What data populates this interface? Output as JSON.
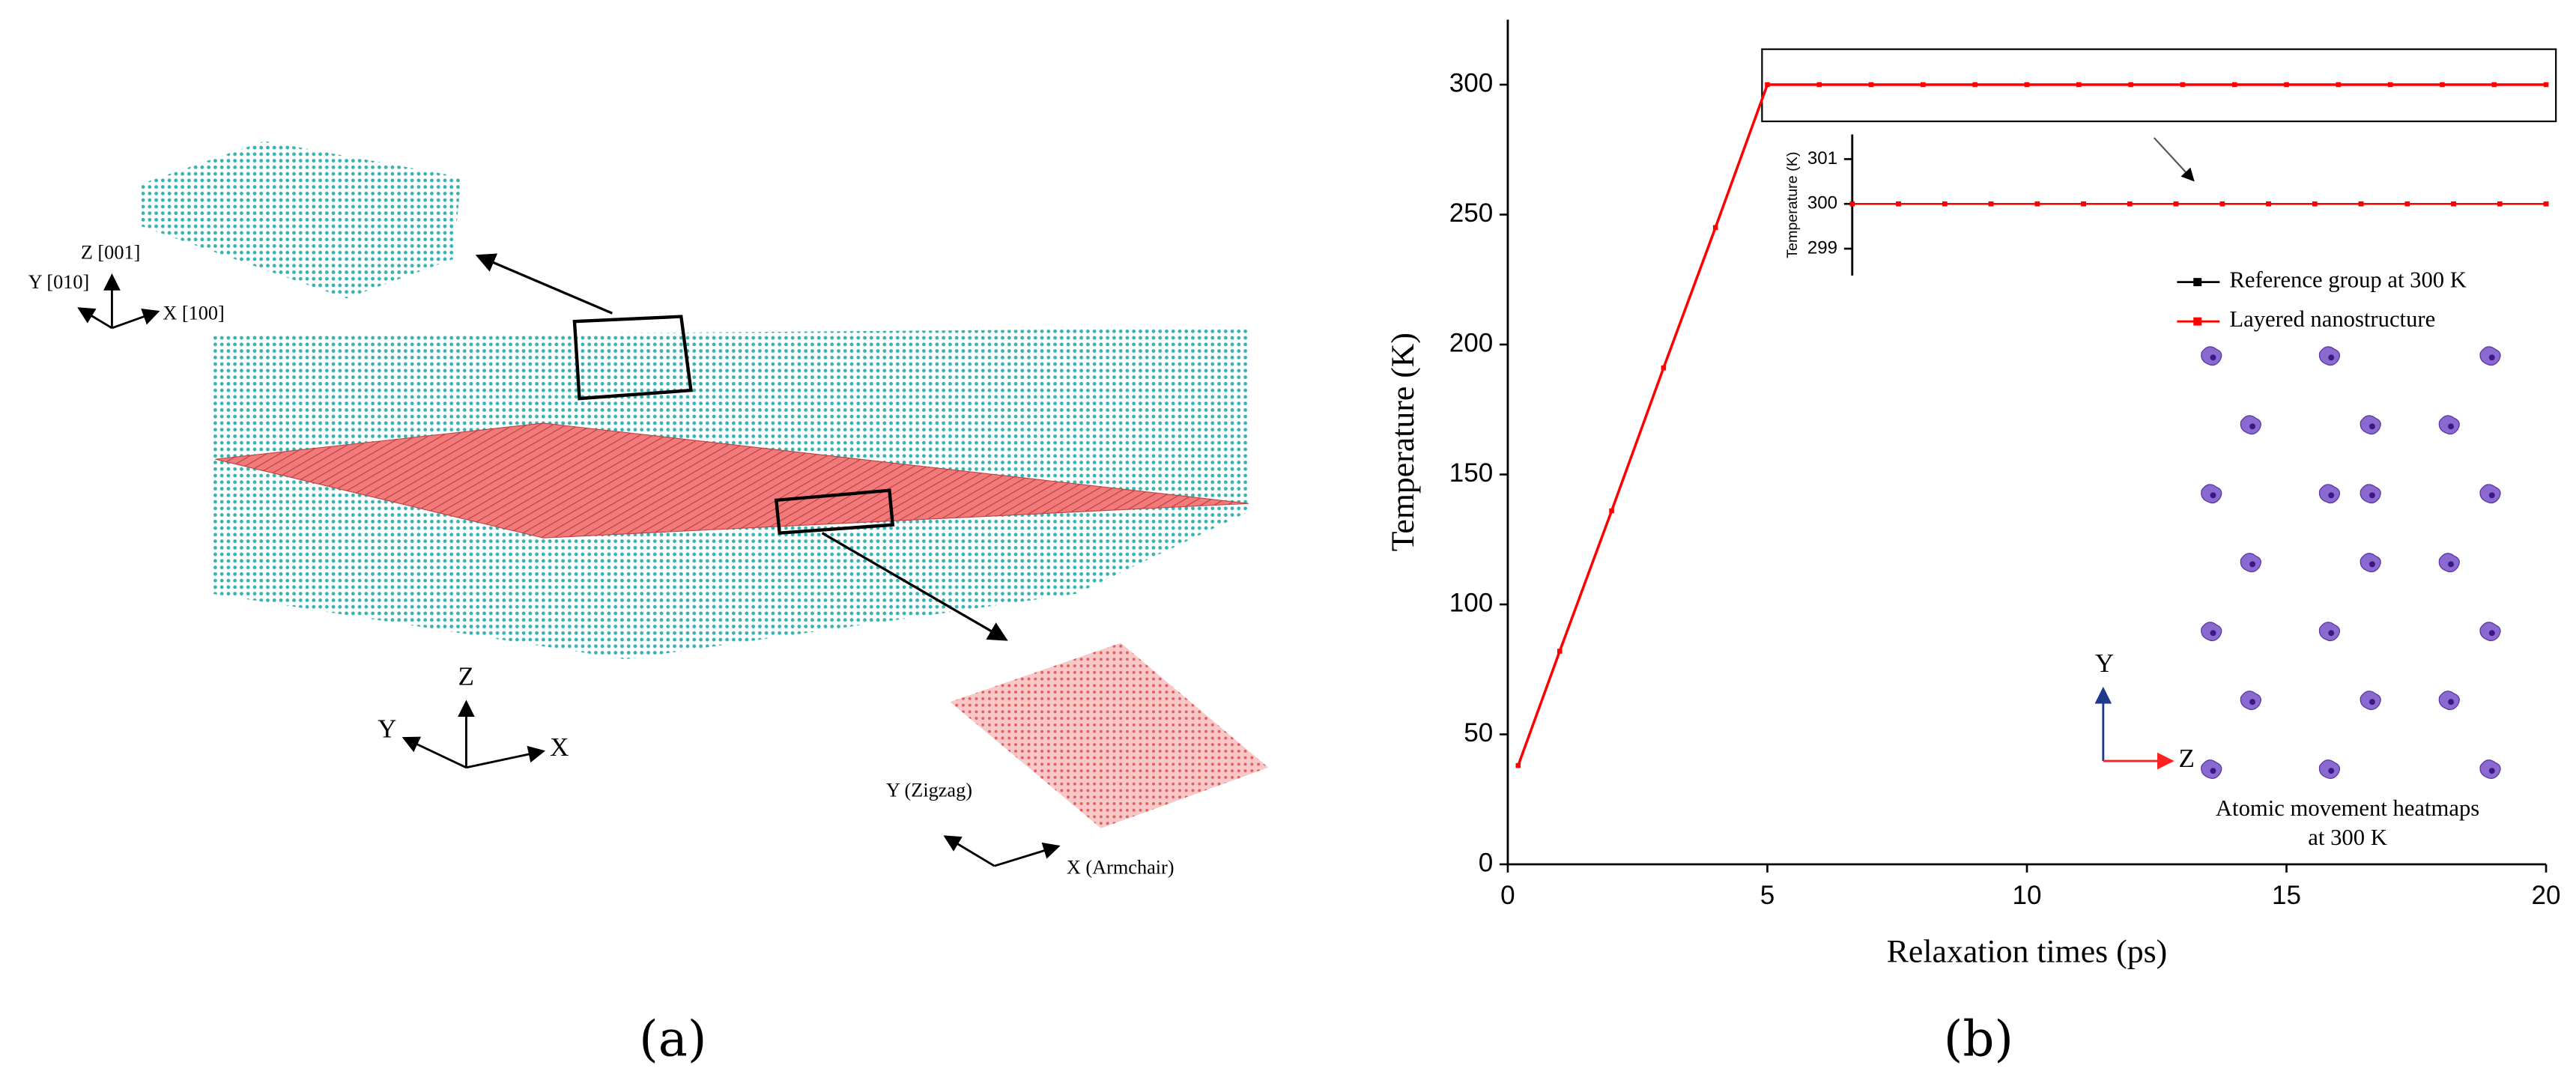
{
  "panel_a": {
    "axes_top": {
      "z": "Z [001]",
      "y": "Y [010]",
      "x": "X [100]"
    },
    "axes_mid": {
      "z": "Z",
      "y": "Y",
      "x": "X"
    },
    "axes_sheet": {
      "y": "Y (Zigzag)",
      "x": "X (Armchair)"
    },
    "label": "(a)"
  },
  "chart_data": [
    {
      "type": "line",
      "panel_label": "(b)",
      "xlabel": "Relaxation times (ps)",
      "ylabel": "Temperature (K)",
      "x": [
        0.2,
        1,
        2,
        3,
        4,
        5,
        6,
        7,
        8,
        9,
        10,
        11,
        12,
        13,
        14,
        15,
        16,
        17,
        18,
        19,
        20
      ],
      "series": [
        {
          "name": "Layered nanostructure",
          "color": "#ff0000",
          "values": [
            38,
            82,
            136,
            191,
            245,
            300,
            300,
            300,
            300,
            300,
            300,
            300,
            300,
            300,
            300,
            300,
            300,
            300,
            300,
            300,
            300
          ]
        }
      ],
      "xlim": [
        0,
        20
      ],
      "ylim": [
        0,
        325
      ],
      "xticks": [
        0,
        5,
        10,
        15,
        20
      ],
      "yticks": [
        0,
        50,
        100,
        150,
        200,
        250,
        300
      ],
      "annotations": {
        "caption": [
          "Atomic movement heatmaps",
          "at 300 K"
        ],
        "axis_y": "Y",
        "axis_z": "Z"
      }
    },
    {
      "type": "line",
      "ylabel": "Temperature (K)",
      "x": [
        5,
        6,
        7,
        8,
        9,
        10,
        11,
        12,
        13,
        14,
        15,
        16,
        17,
        18,
        19,
        20
      ],
      "series": [
        {
          "name": "Reference group at 300 K",
          "color": "#000000",
          "values": [
            300,
            300,
            300,
            300,
            300,
            300,
            300,
            300,
            300,
            300,
            300,
            300,
            300,
            300,
            300,
            300
          ]
        },
        {
          "name": "Layered nanostructure",
          "color": "#ff0000",
          "values": [
            300,
            300,
            300,
            300,
            300,
            300,
            300,
            300,
            300,
            300,
            300,
            300,
            300,
            300,
            300,
            300
          ]
        }
      ],
      "xlim": [
        5,
        20
      ],
      "ylim": [
        298.4,
        301.55
      ],
      "yticks": [
        299,
        300,
        301
      ],
      "legend": "lower right"
    }
  ]
}
